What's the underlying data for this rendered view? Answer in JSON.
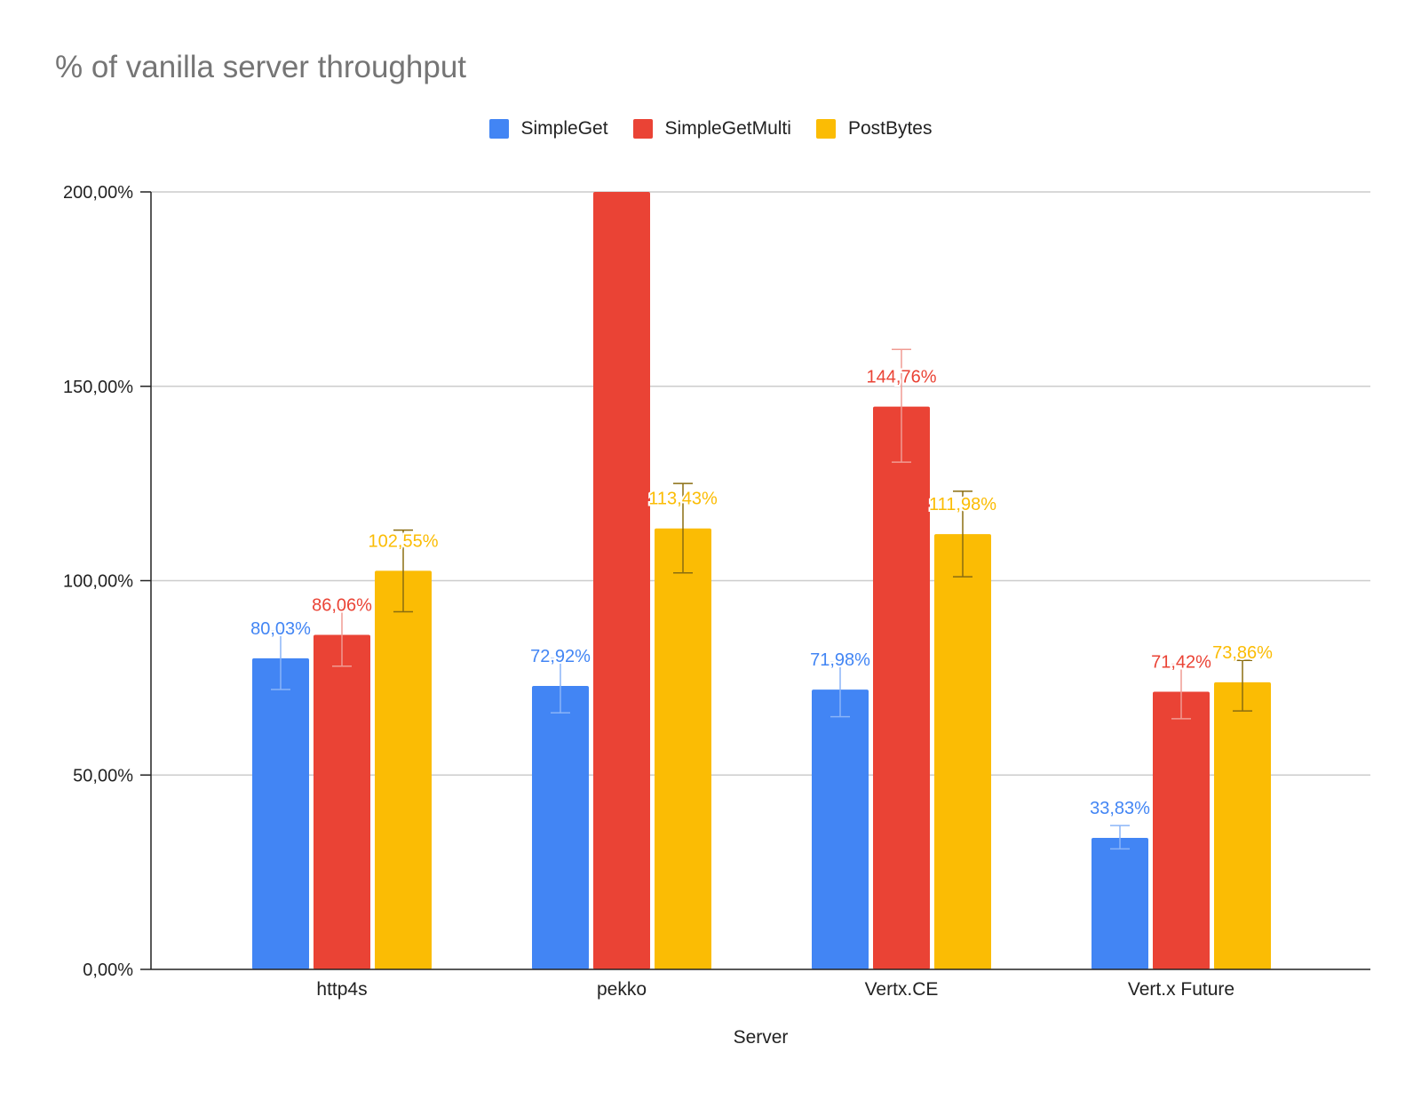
{
  "chart_data": {
    "type": "bar",
    "title": "% of vanilla server throughput",
    "xlabel": "Server",
    "ylabel": "",
    "ylim": [
      0,
      200
    ],
    "yticks": [
      "0,00%",
      "50,00%",
      "100,00%",
      "150,00%",
      "200,00%"
    ],
    "ytick_values": [
      0,
      50,
      100,
      150,
      200
    ],
    "categories": [
      "http4s",
      "pekko",
      "Vertx.CE",
      "Vert.x Future"
    ],
    "legend_position": "top",
    "grid": true,
    "series": [
      {
        "name": "SimpleGet",
        "color": "#4285F4",
        "values": [
          80.03,
          72.92,
          71.98,
          33.83
        ],
        "labels": [
          "80,03%",
          "72,92%",
          "71,98%",
          "33,83%"
        ],
        "errors": [
          [
            72,
            87
          ],
          [
            66,
            80
          ],
          [
            65,
            79
          ],
          [
            31,
            37
          ]
        ]
      },
      {
        "name": "SimpleGetMulti",
        "color": "#EA4335",
        "values": [
          86.06,
          200,
          144.76,
          71.42
        ],
        "labels": [
          "86,06%",
          "",
          "144,76%",
          "71,42%"
        ],
        "errors": [
          [
            78,
            93
          ],
          null,
          [
            130.5,
            159.5
          ],
          [
            64.5,
            78.5
          ]
        ]
      },
      {
        "name": "PostBytes",
        "color": "#FBBC04",
        "values": [
          102.55,
          113.43,
          111.98,
          73.86
        ],
        "labels": [
          "102,55%",
          "113,43%",
          "111,98%",
          "73,86%"
        ],
        "errors": [
          [
            92,
            113
          ],
          [
            102,
            125
          ],
          [
            101,
            123
          ],
          [
            66.5,
            79.5
          ]
        ]
      }
    ]
  }
}
